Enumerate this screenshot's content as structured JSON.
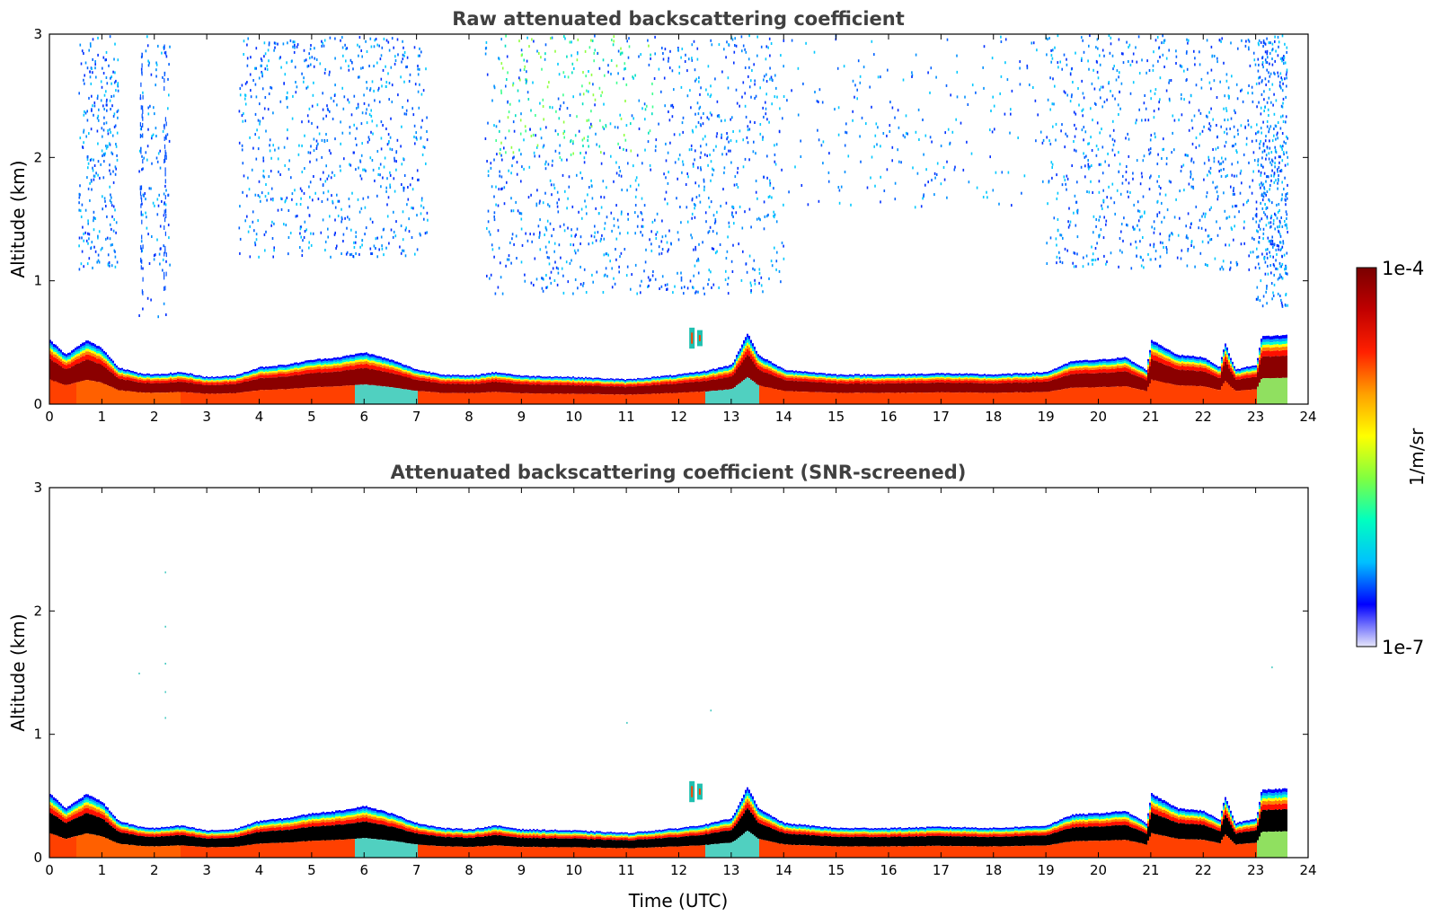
{
  "chart_data": [
    {
      "type": "heatmap",
      "title": "Raw attenuated backscattering coefficient",
      "xlabel": "",
      "ylabel": "Altitude (km)",
      "xlim": [
        0,
        24
      ],
      "ylim": [
        0,
        3
      ],
      "xticks": [
        0,
        1,
        2,
        3,
        4,
        5,
        6,
        7,
        8,
        9,
        10,
        11,
        12,
        13,
        14,
        15,
        16,
        17,
        18,
        19,
        20,
        21,
        22,
        23,
        24
      ],
      "yticks": [
        0,
        1,
        2,
        3
      ],
      "screened": false
    },
    {
      "type": "heatmap",
      "title": "Attenuated backscattering coefficient (SNR-screened)",
      "xlabel": "Time (UTC)",
      "ylabel": "Altitude (km)",
      "xlim": [
        0,
        24
      ],
      "ylim": [
        0,
        3
      ],
      "xticks": [
        0,
        1,
        2,
        3,
        4,
        5,
        6,
        7,
        8,
        9,
        10,
        11,
        12,
        13,
        14,
        15,
        16,
        17,
        18,
        19,
        20,
        21,
        22,
        23,
        24
      ],
      "yticks": [
        0,
        1,
        2,
        3
      ],
      "screened": true
    }
  ],
  "boundary_layer_top_km": {
    "time_utc": [
      0,
      0.3,
      0.7,
      1.0,
      1.3,
      1.7,
      2.0,
      2.5,
      3.0,
      3.5,
      4.0,
      4.5,
      5.0,
      5.5,
      6.0,
      6.5,
      7.0,
      7.5,
      8.0,
      8.5,
      9.0,
      10.0,
      11.0,
      12.0,
      12.5,
      13.0,
      13.3,
      13.5,
      14.0,
      15.0,
      16.0,
      17.0,
      18.0,
      19.0,
      19.5,
      20.0,
      20.5,
      20.9,
      21.0,
      21.5,
      22.0,
      22.3,
      22.4,
      22.6,
      23.0,
      23.1,
      23.6
    ],
    "altitude": [
      0.52,
      0.4,
      0.52,
      0.45,
      0.3,
      0.25,
      0.24,
      0.26,
      0.22,
      0.23,
      0.3,
      0.32,
      0.36,
      0.38,
      0.42,
      0.36,
      0.28,
      0.24,
      0.23,
      0.26,
      0.23,
      0.22,
      0.2,
      0.24,
      0.27,
      0.32,
      0.58,
      0.4,
      0.28,
      0.24,
      0.24,
      0.25,
      0.24,
      0.26,
      0.35,
      0.36,
      0.38,
      0.28,
      0.52,
      0.4,
      0.38,
      0.3,
      0.5,
      0.28,
      0.32,
      0.55,
      0.56
    ]
  },
  "colorbar": {
    "label": "1/m/sr",
    "min_label": "1e-7",
    "max_label": "1e-4",
    "stops": [
      "#e6e6fa",
      "#0000ff",
      "#00c0ff",
      "#00ffc0",
      "#80ff40",
      "#ffff00",
      "#ffa000",
      "#ff2000",
      "#c00000",
      "#7a0000"
    ]
  },
  "colors": {
    "ground_low": "#ff6000",
    "core": "#8b0000",
    "screened_core": "#000000"
  }
}
